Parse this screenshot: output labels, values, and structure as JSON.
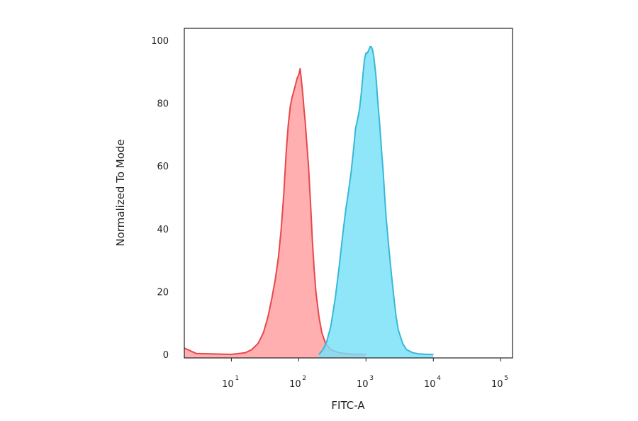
{
  "chart_data": {
    "type": "area",
    "xlabel": "FITC-A",
    "ylabel": "Normalized To Mode",
    "x_scale": "log",
    "xlim": [
      2,
      150000
    ],
    "ylim": [
      0,
      100
    ],
    "y_ticks": [
      "0",
      "20",
      "40",
      "60",
      "80",
      "100"
    ],
    "x_ticks": [
      {
        "base": "10",
        "exp": "1",
        "value": 10
      },
      {
        "base": "10",
        "exp": "2",
        "value": 100
      },
      {
        "base": "10",
        "exp": "3",
        "value": 1000
      },
      {
        "base": "10",
        "exp": "4",
        "value": 10000
      },
      {
        "base": "10",
        "exp": "5",
        "value": 100000
      }
    ],
    "grid": false,
    "legend": "none",
    "series": [
      {
        "color": "#e8474c",
        "fill": "#ff9e9e",
        "x": [
          2,
          3,
          10,
          16,
          20,
          25,
          30,
          35,
          40,
          45,
          50,
          55,
          60,
          65,
          70,
          75,
          80,
          85,
          90,
          95,
          100,
          105,
          110,
          115,
          120,
          125,
          130,
          140,
          150,
          160,
          170,
          180,
          200,
          220,
          250,
          300,
          400,
          600,
          1000
        ],
        "y": [
          2,
          0.3,
          0,
          0.5,
          1.5,
          3.5,
          7,
          12,
          18,
          24,
          31,
          40,
          51,
          64,
          73,
          79,
          82,
          84,
          86,
          88,
          89,
          91,
          87,
          83,
          78,
          74,
          69,
          60,
          48,
          36,
          27,
          20,
          12,
          7,
          3.5,
          1.5,
          0.5,
          0.1,
          0
        ]
      },
      {
        "color": "#36b8d8",
        "fill": "#78e0f8",
        "x": [
          200,
          230,
          260,
          300,
          350,
          400,
          450,
          500,
          550,
          600,
          650,
          700,
          750,
          800,
          850,
          900,
          950,
          1000,
          1050,
          1100,
          1150,
          1200,
          1250,
          1300,
          1400,
          1500,
          1600,
          1700,
          1800,
          1900,
          2000,
          2200,
          2400,
          2600,
          2800,
          3000,
          3500,
          4000,
          5000,
          6000,
          8000,
          10000
        ],
        "y": [
          0,
          1.5,
          4,
          9,
          18,
          28,
          38,
          46,
          52,
          58,
          65,
          72,
          75,
          78,
          83,
          89,
          94,
          96,
          96,
          97,
          98,
          98,
          97,
          95,
          89,
          80,
          73,
          65,
          58,
          50,
          43,
          33,
          25,
          18,
          12,
          8,
          3.5,
          1.5,
          0.5,
          0.2,
          0,
          0
        ]
      }
    ]
  }
}
